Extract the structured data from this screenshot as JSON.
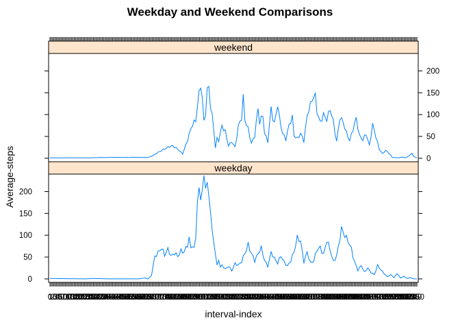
{
  "chart_data": {
    "type": "line",
    "title": "Weekday and Weekend Comparisons",
    "xlabel": "interval-index",
    "ylabel": "Average-steps",
    "ylim": [
      -8,
      240
    ],
    "yticks": [
      0,
      50,
      100,
      150,
      200
    ],
    "x_points": 288,
    "x_tick_note": "dense overlapping interval tick labels",
    "colors": {
      "line": "#0080ff",
      "strip": "#ffe5cc"
    },
    "panels": [
      {
        "name": "weekend",
        "position": "top",
        "y_axis_side": "right",
        "keypoints": [
          [
            0,
            1
          ],
          [
            24,
            1
          ],
          [
            36,
            2
          ],
          [
            48,
            2
          ],
          [
            60,
            2
          ],
          [
            63,
            6
          ],
          [
            66,
            14
          ],
          [
            69,
            20
          ],
          [
            72,
            24
          ],
          [
            75,
            28
          ],
          [
            78,
            22
          ],
          [
            81,
            10
          ],
          [
            84,
            40
          ],
          [
            87,
            80
          ],
          [
            89,
            90
          ],
          [
            90,
            122
          ],
          [
            91,
            150
          ],
          [
            92,
            165
          ],
          [
            93,
            135
          ],
          [
            94,
            80
          ],
          [
            95,
            100
          ],
          [
            96,
            155
          ],
          [
            97,
            165
          ],
          [
            98,
            120
          ],
          [
            99,
            100
          ],
          [
            100,
            70
          ],
          [
            101,
            25
          ],
          [
            102,
            45
          ],
          [
            103,
            40
          ],
          [
            105,
            70
          ],
          [
            107,
            60
          ],
          [
            109,
            30
          ],
          [
            111,
            40
          ],
          [
            113,
            25
          ],
          [
            115,
            70
          ],
          [
            117,
            90
          ],
          [
            118,
            140
          ],
          [
            119,
            90
          ],
          [
            121,
            70
          ],
          [
            123,
            35
          ],
          [
            125,
            50
          ],
          [
            127,
            110
          ],
          [
            128,
            80
          ],
          [
            130,
            100
          ],
          [
            131,
            60
          ],
          [
            133,
            40
          ],
          [
            135,
            115
          ],
          [
            136,
            90
          ],
          [
            137,
            75
          ],
          [
            139,
            120
          ],
          [
            140,
            95
          ],
          [
            142,
            60
          ],
          [
            144,
            45
          ],
          [
            146,
            75
          ],
          [
            148,
            90
          ],
          [
            149,
            50
          ],
          [
            151,
            45
          ],
          [
            153,
            60
          ],
          [
            155,
            40
          ],
          [
            157,
            95
          ],
          [
            159,
            120
          ],
          [
            161,
            140
          ],
          [
            162,
            145
          ],
          [
            163,
            110
          ],
          [
            165,
            85
          ],
          [
            167,
            100
          ],
          [
            169,
            85
          ],
          [
            171,
            110
          ],
          [
            173,
            85
          ],
          [
            175,
            40
          ],
          [
            177,
            95
          ],
          [
            179,
            80
          ],
          [
            181,
            55
          ],
          [
            183,
            40
          ],
          [
            185,
            70
          ],
          [
            187,
            95
          ],
          [
            189,
            50
          ],
          [
            191,
            40
          ],
          [
            193,
            55
          ],
          [
            195,
            30
          ],
          [
            197,
            80
          ],
          [
            199,
            50
          ],
          [
            201,
            20
          ],
          [
            203,
            10
          ],
          [
            205,
            18
          ],
          [
            207,
            12
          ],
          [
            209,
            2
          ],
          [
            213,
            1
          ],
          [
            215,
            3
          ],
          [
            217,
            1
          ],
          [
            219,
            5
          ],
          [
            221,
            12
          ],
          [
            222,
            4
          ],
          [
            224,
            1
          ]
        ]
      },
      {
        "name": "weekday",
        "position": "bottom",
        "y_axis_side": "left",
        "keypoints": [
          [
            0,
            1
          ],
          [
            22,
            0
          ],
          [
            26,
            1
          ],
          [
            36,
            0
          ],
          [
            48,
            0
          ],
          [
            54,
            0
          ],
          [
            58,
            2
          ],
          [
            60,
            0
          ],
          [
            62,
            8
          ],
          [
            64,
            50
          ],
          [
            66,
            62
          ],
          [
            68,
            75
          ],
          [
            70,
            55
          ],
          [
            72,
            65
          ],
          [
            74,
            50
          ],
          [
            76,
            60
          ],
          [
            78,
            55
          ],
          [
            80,
            65
          ],
          [
            82,
            60
          ],
          [
            84,
            75
          ],
          [
            85,
            90
          ],
          [
            86,
            70
          ],
          [
            87,
            80
          ],
          [
            88,
            70
          ],
          [
            89,
            100
          ],
          [
            90,
            180
          ],
          [
            91,
            205
          ],
          [
            92,
            185
          ],
          [
            93,
            200
          ],
          [
            94,
            230
          ],
          [
            95,
            210
          ],
          [
            96,
            215
          ],
          [
            97,
            190
          ],
          [
            98,
            160
          ],
          [
            99,
            110
          ],
          [
            100,
            90
          ],
          [
            101,
            60
          ],
          [
            102,
            30
          ],
          [
            103,
            45
          ],
          [
            104,
            25
          ],
          [
            105,
            30
          ],
          [
            107,
            22
          ],
          [
            109,
            30
          ],
          [
            111,
            20
          ],
          [
            113,
            35
          ],
          [
            115,
            30
          ],
          [
            117,
            38
          ],
          [
            119,
            60
          ],
          [
            121,
            82
          ],
          [
            123,
            60
          ],
          [
            125,
            40
          ],
          [
            127,
            55
          ],
          [
            129,
            70
          ],
          [
            131,
            45
          ],
          [
            133,
            30
          ],
          [
            135,
            60
          ],
          [
            137,
            45
          ],
          [
            139,
            35
          ],
          [
            141,
            55
          ],
          [
            143,
            40
          ],
          [
            145,
            30
          ],
          [
            147,
            40
          ],
          [
            149,
            60
          ],
          [
            151,
            95
          ],
          [
            153,
            90
          ],
          [
            155,
            40
          ],
          [
            157,
            60
          ],
          [
            159,
            35
          ],
          [
            161,
            40
          ],
          [
            163,
            70
          ],
          [
            165,
            75
          ],
          [
            167,
            55
          ],
          [
            169,
            85
          ],
          [
            171,
            65
          ],
          [
            173,
            40
          ],
          [
            175,
            55
          ],
          [
            177,
            95
          ],
          [
            178,
            115
          ],
          [
            180,
            95
          ],
          [
            182,
            85
          ],
          [
            184,
            70
          ],
          [
            186,
            40
          ],
          [
            188,
            20
          ],
          [
            190,
            30
          ],
          [
            192,
            15
          ],
          [
            194,
            25
          ],
          [
            196,
            15
          ],
          [
            198,
            10
          ],
          [
            200,
            30
          ],
          [
            202,
            20
          ],
          [
            204,
            12
          ],
          [
            206,
            5
          ],
          [
            208,
            10
          ],
          [
            210,
            3
          ],
          [
            212,
            12
          ],
          [
            214,
            2
          ],
          [
            216,
            6
          ],
          [
            218,
            1
          ],
          [
            220,
            3
          ],
          [
            222,
            0
          ],
          [
            224,
            0
          ]
        ]
      }
    ]
  }
}
